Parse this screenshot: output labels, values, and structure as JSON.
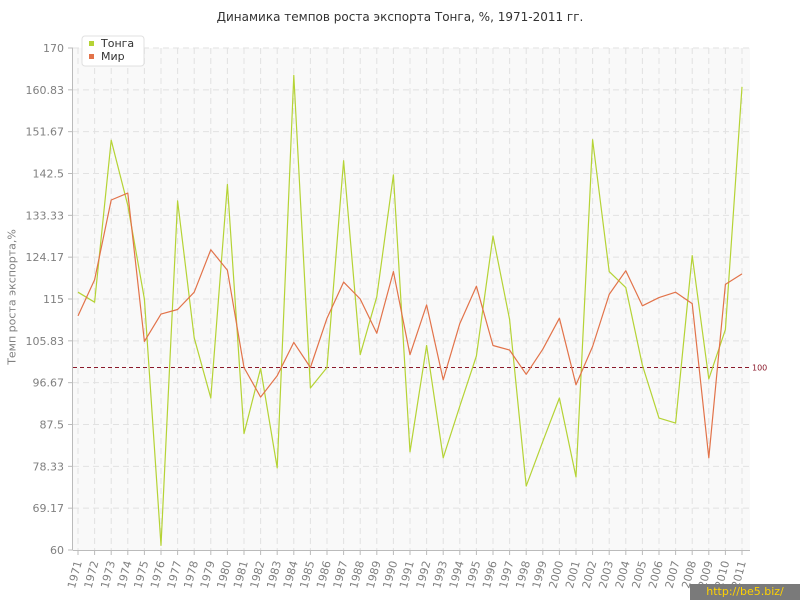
{
  "chart_data": {
    "type": "line",
    "title": "Динамика темпов роста экспорта Тонга, %, 1971-2011 гг.",
    "xlabel": "",
    "ylabel": "Темп роста экспорта,%",
    "x": [
      "1971",
      "1972",
      "1973",
      "1974",
      "1975",
      "1976",
      "1977",
      "1978",
      "1979",
      "1980",
      "1981",
      "1982",
      "1983",
      "1984",
      "1985",
      "1986",
      "1987",
      "1988",
      "1989",
      "1990",
      "1991",
      "1992",
      "1993",
      "1994",
      "1995",
      "1996",
      "1997",
      "1998",
      "1999",
      "2000",
      "2001",
      "2002",
      "2003",
      "2004",
      "2005",
      "2006",
      "2007",
      "2008",
      "2009",
      "2010",
      "2011"
    ],
    "ylim": [
      60,
      170
    ],
    "yticks": [
      "60",
      "69.17",
      "78.33",
      "87.5",
      "96.67",
      "105.83",
      "115",
      "124.17",
      "133.33",
      "142.5",
      "151.67",
      "160.83",
      "170"
    ],
    "reference_line": {
      "value": 100,
      "label": "100",
      "color": "#8b1a2b"
    },
    "series": [
      {
        "name": "Тонга",
        "color": "#b5d335",
        "values": [
          116.5,
          114.3,
          149.8,
          135.5,
          115,
          61,
          136.5,
          106.5,
          93.3,
          140.1,
          85.5,
          99.8,
          78,
          164,
          95.5,
          100,
          145.3,
          102.8,
          115.5,
          142.2,
          81.5,
          104.8,
          80.2,
          91.5,
          102.5,
          128.8,
          110.5,
          74,
          83.8,
          93.3,
          76,
          149.9,
          121,
          117.5,
          100.5,
          88.9,
          87.8,
          124.5,
          97.5,
          108.3,
          161.5
        ]
      },
      {
        "name": "Мир",
        "color": "#e2734a",
        "values": [
          111.3,
          119.2,
          136.7,
          138.2,
          105.7,
          111.7,
          112.7,
          116.5,
          125.8,
          121.3,
          100,
          93.5,
          98.2,
          105.5,
          100,
          110.8,
          118.7,
          115,
          107.5,
          121,
          102.8,
          113.7,
          97.3,
          109.6,
          117.8,
          104.8,
          103.8,
          98.5,
          104,
          110.8,
          96.2,
          104.6,
          116,
          121.2,
          113.5,
          115.3,
          116.5,
          114,
          80.2,
          118.2,
          120.5
        ]
      }
    ],
    "legend": {
      "position": "top-left"
    },
    "grid": true
  },
  "watermark": "http://be5.biz/"
}
